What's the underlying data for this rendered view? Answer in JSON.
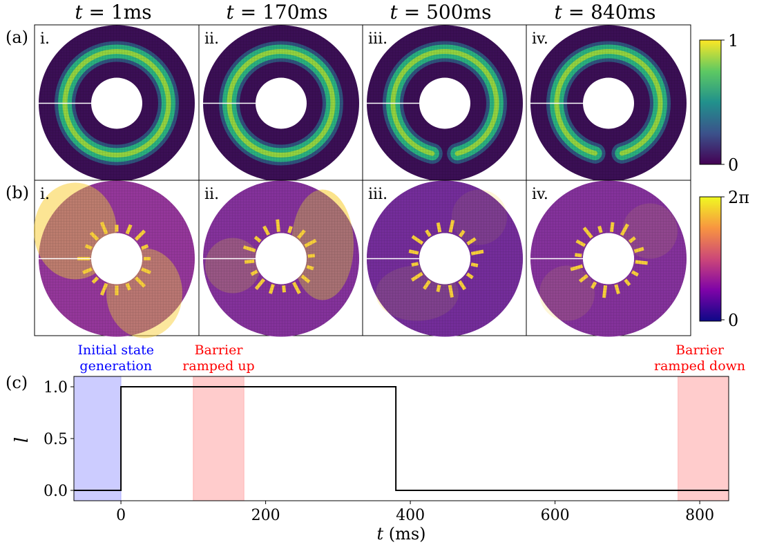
{
  "column_titles": [
    "t = 1ms",
    "t = 170ms",
    "t = 500ms",
    "t = 840ms"
  ],
  "column_times": [
    "1ms",
    "170ms",
    "500ms",
    "840ms"
  ],
  "row_labels": [
    "(a)",
    "(b)",
    "(c)"
  ],
  "panel_numerals": [
    "i.",
    "ii.",
    "iii.",
    "iv."
  ],
  "colorbar_a": {
    "colormap": "viridis",
    "min_label": "0",
    "max_label": "1",
    "colors": [
      "#440154",
      "#3b528b",
      "#21918c",
      "#5ec962",
      "#fde725"
    ]
  },
  "colorbar_b": {
    "colormap": "plasma",
    "min_label": "0",
    "max_label": "2π",
    "colors": [
      "#0d0887",
      "#7e03a8",
      "#cc4778",
      "#f89540",
      "#f0f921"
    ]
  },
  "ring_a": {
    "background_color": "#3b0f55",
    "band_colors": [
      "#2ab07f",
      "#b5de2b"
    ],
    "gap_angle_deg": [
      0,
      0,
      28,
      30
    ]
  },
  "ring_b": {
    "base_color": "#a43d9b",
    "highlight_color": "#f9d03c",
    "dark_color": "#3a1a9a"
  },
  "chart_data": {
    "type": "line",
    "xlabel": "t (ms)",
    "ylabel": "l",
    "xlim": [
      -65,
      840
    ],
    "ylim": [
      -0.1,
      1.1
    ],
    "xticks": [
      0,
      200,
      400,
      600,
      800
    ],
    "yticks": [
      0.0,
      0.5,
      1.0
    ],
    "ytick_labels": [
      "0.0",
      "0.5",
      "1.0"
    ],
    "series": [
      {
        "x": [
          -65,
          0,
          0,
          380,
          380,
          840
        ],
        "y": [
          0,
          0,
          1,
          1,
          0,
          0
        ],
        "color": "#000000"
      }
    ],
    "spans": [
      {
        "x": [
          -65,
          0
        ],
        "color": "#8080ff",
        "label_lines": [
          "Initial state",
          "generation"
        ],
        "label_color": "#0000ff",
        "label_at": -7
      },
      {
        "x": [
          100,
          170
        ],
        "color": "#ff8080",
        "label_lines": [
          "Barrier",
          "ramped up"
        ],
        "label_color": "#ff0000",
        "label_at": 135
      },
      {
        "x": [
          770,
          840
        ],
        "color": "#ff8080",
        "label_lines": [
          "Barrier",
          "ramped down"
        ],
        "label_color": "#ff0000",
        "label_at": 800
      }
    ]
  }
}
